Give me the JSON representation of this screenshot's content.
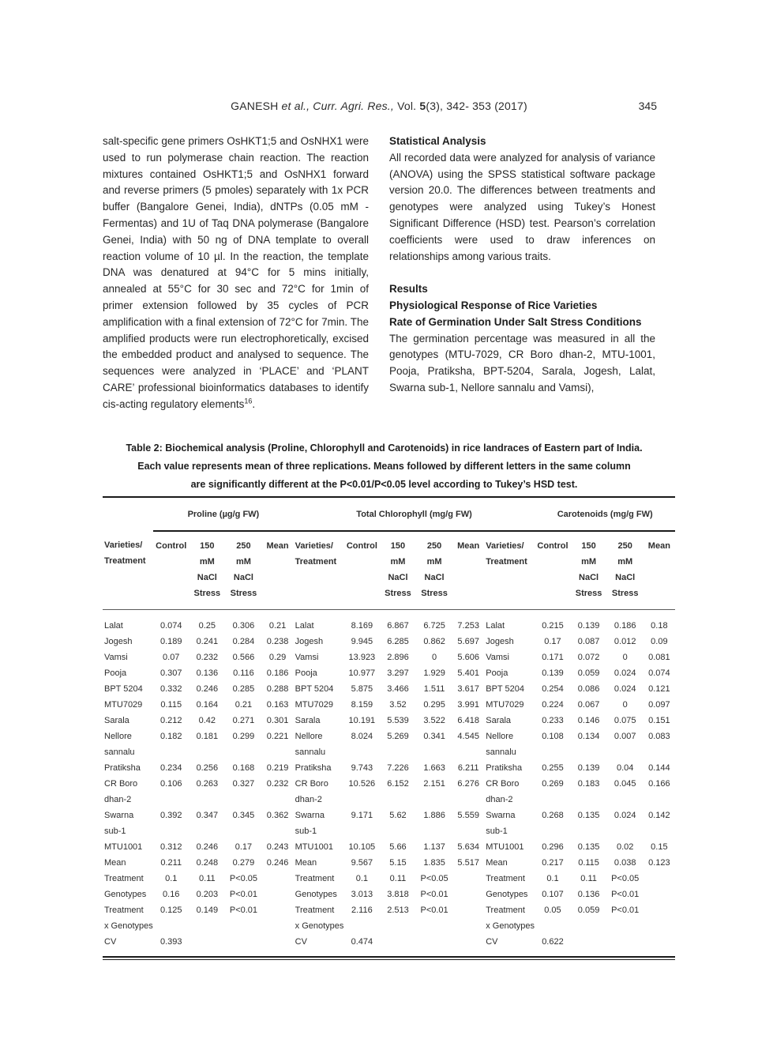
{
  "header": {
    "authors": "GANESH ",
    "citation_italic": "et al., Curr. Agri. Res.,",
    "vol_prefix": " Vol. ",
    "vol_bold": "5",
    "vol_suffix": "(3), 342- 353 (2017)",
    "page_number": "345"
  },
  "left_column": {
    "paragraph": "salt-specific gene primers OsHKT1;5 and OsNHX1 were used to run polymerase chain reaction. The reaction mixtures contained OsHKT1;5 and OsNHX1 forward and reverse primers (5 pmoles) separately with 1x PCR buffer (Bangalore Genei, India), dNTPs (0.05 mM - Fermentas) and 1U of Taq DNA polymerase (Bangalore Genei, India) with 50 ng of DNA template to overall reaction volume of 10 µl. In the reaction, the template DNA was denatured at 94°C for 5 mins initially, annealed at 55°C for 30 sec and 72°C for 1min of primer extension followed by 35 cycles of PCR amplification with a final extension of 72°C for 7min. The amplified products were run electrophoretically, excised the embedded product and analysed to sequence. The sequences were analyzed in ‘PLACE’ and ‘PLANT CARE’ professional bioinformatics databases to identify cis-acting regulatory elements",
    "footnote_ref": "16",
    "footnote_period": "."
  },
  "right_column": {
    "stat_heading": "Statistical Analysis",
    "stat_paragraph": "All recorded data were analyzed for analysis of variance (ANOVA) using the SPSS statistical software package version 20.0. The differences between treatments and genotypes were analyzed using Tukey’s Honest Significant Difference (HSD) test. Pearson’s correlation coefficients were used to draw inferences on relationships among various traits.",
    "results_heading": "Results",
    "sub_heading_1": "Physiological Response of Rice Varieties",
    "sub_heading_2": "Rate of Germination Under Salt Stress Conditions",
    "results_paragraph": "The germination percentage was measured in all the genotypes (MTU-7029, CR Boro dhan-2, MTU-1001, Pooja, Pratiksha, BPT-5204, Sarala, Jogesh, Lalat, Swarna sub-1, Nellore sannalu and Vamsi),"
  },
  "table": {
    "caption_lines": [
      "Table 2: Biochemical analysis (Proline, Chlorophyll and Carotenoids) in rice landraces of Eastern part of India.",
      "Each value represents mean of three replications. Means followed by different letters in the same column",
      "are significantly different at the P<0.01/P<0.05 level according to Tukey’s HSD test."
    ],
    "groups": [
      "Proline (µg/g FW)",
      "Total Chlorophyll (mg/g FW)",
      "Carotenoids (mg/g FW)"
    ],
    "col_headers": {
      "varieties": "Varieties/\nTreatment",
      "control": "Control",
      "nacl150": "150\nmM NaCl\nStress",
      "nacl250": "250\nmM NaCl\nStress",
      "mean": "Mean"
    },
    "rows": [
      {
        "name": "Lalat",
        "proline": [
          "0.074",
          "0.25",
          "0.306",
          "0.21"
        ],
        "chlorophyll": [
          "8.169",
          "6.867",
          "6.725",
          "7.253"
        ],
        "carotenoids": [
          "0.215",
          "0.139",
          "0.186",
          "0.18"
        ]
      },
      {
        "name": "Jogesh",
        "proline": [
          "0.189",
          "0.241",
          "0.284",
          "0.238"
        ],
        "chlorophyll": [
          "9.945",
          "6.285",
          "0.862",
          "5.697"
        ],
        "carotenoids": [
          "0.17",
          "0.087",
          "0.012",
          "0.09"
        ]
      },
      {
        "name": "Vamsi",
        "proline": [
          "0.07",
          "0.232",
          "0.566",
          "0.29"
        ],
        "chlorophyll": [
          "13.923",
          "2.896",
          "0",
          "5.606"
        ],
        "carotenoids": [
          "0.171",
          "0.072",
          "0",
          "0.081"
        ]
      },
      {
        "name": "Pooja",
        "proline": [
          "0.307",
          "0.136",
          "0.116",
          "0.186"
        ],
        "chlorophyll": [
          "10.977",
          "3.297",
          "1.929",
          "5.401"
        ],
        "carotenoids": [
          "0.139",
          "0.059",
          "0.024",
          "0.074"
        ]
      },
      {
        "name": "BPT 5204",
        "proline": [
          "0.332",
          "0.246",
          "0.285",
          "0.288"
        ],
        "chlorophyll": [
          "5.875",
          "3.466",
          "1.511",
          "3.617"
        ],
        "carotenoids": [
          "0.254",
          "0.086",
          "0.024",
          "0.121"
        ]
      },
      {
        "name": "MTU7029",
        "proline": [
          "0.115",
          "0.164",
          "0.21",
          "0.163"
        ],
        "chlorophyll": [
          "8.159",
          "3.52",
          "0.295",
          "3.991"
        ],
        "carotenoids": [
          "0.224",
          "0.067",
          "0",
          "0.097"
        ]
      },
      {
        "name": "Sarala",
        "proline": [
          "0.212",
          "0.42",
          "0.271",
          "0.301"
        ],
        "chlorophyll": [
          "10.191",
          "5.539",
          "3.522",
          "6.418"
        ],
        "carotenoids": [
          "0.233",
          "0.146",
          "0.075",
          "0.151"
        ]
      },
      {
        "name": "Nellore\nsannalu",
        "proline": [
          "0.182",
          "0.181",
          "0.299",
          "0.221"
        ],
        "chlorophyll": [
          "8.024",
          "5.269",
          "0.341",
          "4.545"
        ],
        "carotenoids": [
          "0.108",
          "0.134",
          "0.007",
          "0.083"
        ]
      },
      {
        "name": "Pratiksha",
        "proline": [
          "0.234",
          "0.256",
          "0.168",
          "0.219"
        ],
        "chlorophyll": [
          "9.743",
          "7.226",
          "1.663",
          "6.211"
        ],
        "carotenoids": [
          "0.255",
          "0.139",
          "0.04",
          "0.144"
        ]
      },
      {
        "name": "CR Boro\ndhan-2",
        "proline": [
          "0.106",
          "0.263",
          "0.327",
          "0.232"
        ],
        "chlorophyll": [
          "10.526",
          "6.152",
          "2.151",
          "6.276"
        ],
        "carotenoids": [
          "0.269",
          "0.183",
          "0.045",
          "0.166"
        ]
      },
      {
        "name": "Swarna\nsub-1",
        "proline": [
          "0.392",
          "0.347",
          "0.345",
          "0.362"
        ],
        "chlorophyll": [
          "9.171",
          "5.62",
          "1.886",
          "5.559"
        ],
        "carotenoids": [
          "0.268",
          "0.135",
          "0.024",
          "0.142"
        ]
      },
      {
        "name": "MTU1001",
        "proline": [
          "0.312",
          "0.246",
          "0.17",
          "0.243"
        ],
        "chlorophyll": [
          "10.105",
          "5.66",
          "1.137",
          "5.634"
        ],
        "carotenoids": [
          "0.296",
          "0.135",
          "0.02",
          "0.15"
        ]
      },
      {
        "name": "Mean",
        "proline": [
          "0.211",
          "0.248",
          "0.279",
          "0.246"
        ],
        "chlorophyll": [
          "9.567",
          "5.15",
          "1.835",
          "5.517"
        ],
        "carotenoids": [
          "0.217",
          "0.115",
          "0.038",
          "0.123"
        ]
      },
      {
        "name": "Treatment",
        "proline": [
          "0.1",
          "0.11",
          "P<0.05",
          ""
        ],
        "chlorophyll": [
          "0.1",
          "0.11",
          "P<0.05",
          ""
        ],
        "carotenoids": [
          "0.1",
          "0.11",
          "P<0.05",
          ""
        ]
      },
      {
        "name": "Genotypes",
        "proline": [
          "0.16",
          "0.203",
          "P<0.01",
          ""
        ],
        "chlorophyll": [
          "3.013",
          "3.818",
          "P<0.01",
          ""
        ],
        "carotenoids": [
          "0.107",
          "0.136",
          "P<0.01",
          ""
        ]
      },
      {
        "name": "Treatment\nx Genotypes",
        "proline": [
          "0.125",
          "0.149",
          "P<0.01",
          ""
        ],
        "chlorophyll": [
          "2.116",
          "2.513",
          "P<0.01",
          ""
        ],
        "carotenoids": [
          "0.05",
          "0.059",
          "P<0.01",
          ""
        ]
      },
      {
        "name": "CV",
        "proline": [
          "0.393",
          "",
          "",
          ""
        ],
        "chlorophyll": [
          "0.474",
          "",
          "",
          ""
        ],
        "carotenoids": [
          "0.622",
          "",
          "",
          ""
        ]
      }
    ]
  }
}
